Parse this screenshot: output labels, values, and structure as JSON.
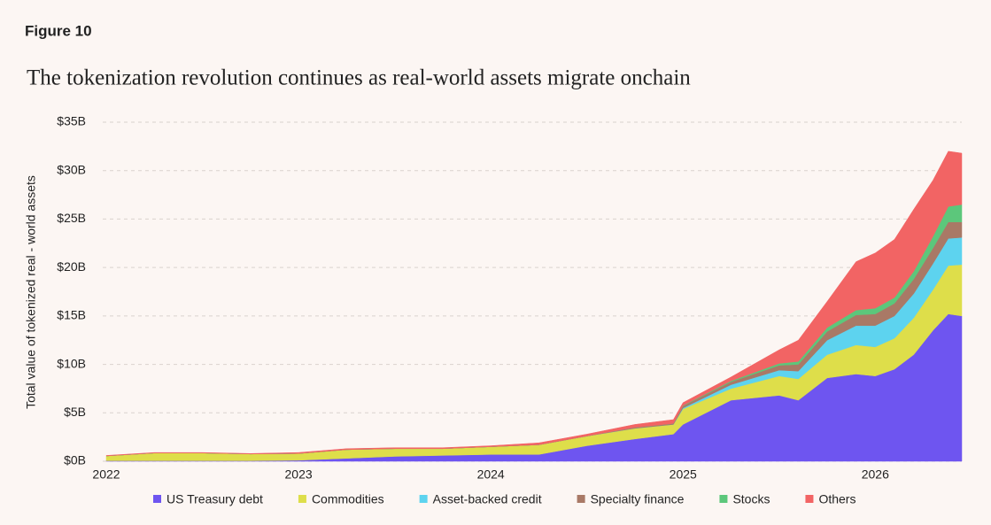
{
  "figure_label": "Figure 10",
  "chart_data": {
    "type": "stacked_area",
    "title": "The tokenization revolution continues as real-world assets migrate onchain",
    "y_label": "Total value of tokenized real - world assets",
    "x": [
      2022.0,
      2022.25,
      2022.5,
      2022.75,
      2023.0,
      2023.25,
      2023.5,
      2023.75,
      2024.0,
      2024.25,
      2024.5,
      2024.75,
      2024.95,
      2025.0,
      2025.25,
      2025.5,
      2025.6,
      2025.75,
      2025.9,
      2026.0,
      2026.1,
      2026.2,
      2026.3,
      2026.38,
      2026.45
    ],
    "xlim": [
      2022,
      2026.45
    ],
    "xticks": [
      2022,
      2023,
      2024,
      2025,
      2026
    ],
    "ylim": [
      0,
      35
    ],
    "yticks": [
      {
        "value": 0,
        "label": "$0B"
      },
      {
        "value": 5,
        "label": "$5B"
      },
      {
        "value": 10,
        "label": "$10B"
      },
      {
        "value": 15,
        "label": "$15B"
      },
      {
        "value": 20,
        "label": "$20B"
      },
      {
        "value": 25,
        "label": "$25B"
      },
      {
        "value": 30,
        "label": "$30B"
      },
      {
        "value": 35,
        "label": "$35B"
      }
    ],
    "grid": true,
    "legend": "bottom",
    "series": [
      {
        "name": "US Treasury debt",
        "color": "#6e55f0",
        "values": [
          0.05,
          0.05,
          0.05,
          0.05,
          0.1,
          0.3,
          0.5,
          0.6,
          0.7,
          0.7,
          1.6,
          2.3,
          2.8,
          3.8,
          6.3,
          6.8,
          6.3,
          8.6,
          9.0,
          8.8,
          9.5,
          11,
          13.5,
          15.2,
          15
        ]
      },
      {
        "name": "Commodities",
        "color": "#dede4a",
        "values": [
          0.5,
          0.8,
          0.8,
          0.7,
          0.7,
          0.9,
          0.8,
          0.7,
          0.8,
          1.0,
          1.0,
          1.1,
          1.0,
          1.6,
          1.2,
          2.0,
          2.2,
          2.4,
          3.0,
          3.0,
          3.2,
          3.8,
          4.2,
          5.0,
          5.3
        ]
      },
      {
        "name": "Asset-backed credit",
        "color": "#5dd3ef",
        "values": [
          0,
          0,
          0,
          0,
          0,
          0,
          0,
          0,
          0,
          0,
          0,
          0,
          0,
          0.1,
          0.4,
          0.6,
          0.8,
          1.5,
          2.0,
          2.2,
          2.3,
          2.5,
          2.7,
          2.8,
          2.8
        ]
      },
      {
        "name": "Specialty finance",
        "color": "#a97966",
        "values": [
          0,
          0,
          0,
          0,
          0,
          0,
          0,
          0,
          0,
          0,
          0,
          0.1,
          0.1,
          0.2,
          0.3,
          0.5,
          0.7,
          0.9,
          1.1,
          1.2,
          1.3,
          1.5,
          1.6,
          1.7,
          1.6
        ]
      },
      {
        "name": "Stocks",
        "color": "#5cc77b",
        "values": [
          0,
          0,
          0,
          0,
          0,
          0,
          0,
          0,
          0,
          0,
          0,
          0,
          0,
          0.05,
          0.1,
          0.2,
          0.3,
          0.4,
          0.5,
          0.6,
          0.6,
          0.8,
          1.2,
          1.6,
          1.8
        ]
      },
      {
        "name": "Others",
        "color": "#f26464",
        "values": [
          0.05,
          0.05,
          0.05,
          0.05,
          0.1,
          0.1,
          0.1,
          0.1,
          0.1,
          0.2,
          0.2,
          0.3,
          0.4,
          0.3,
          0.4,
          1.4,
          2.2,
          2.7,
          5.0,
          5.7,
          6.0,
          6.4,
          5.8,
          5.7,
          5.3
        ]
      }
    ]
  }
}
